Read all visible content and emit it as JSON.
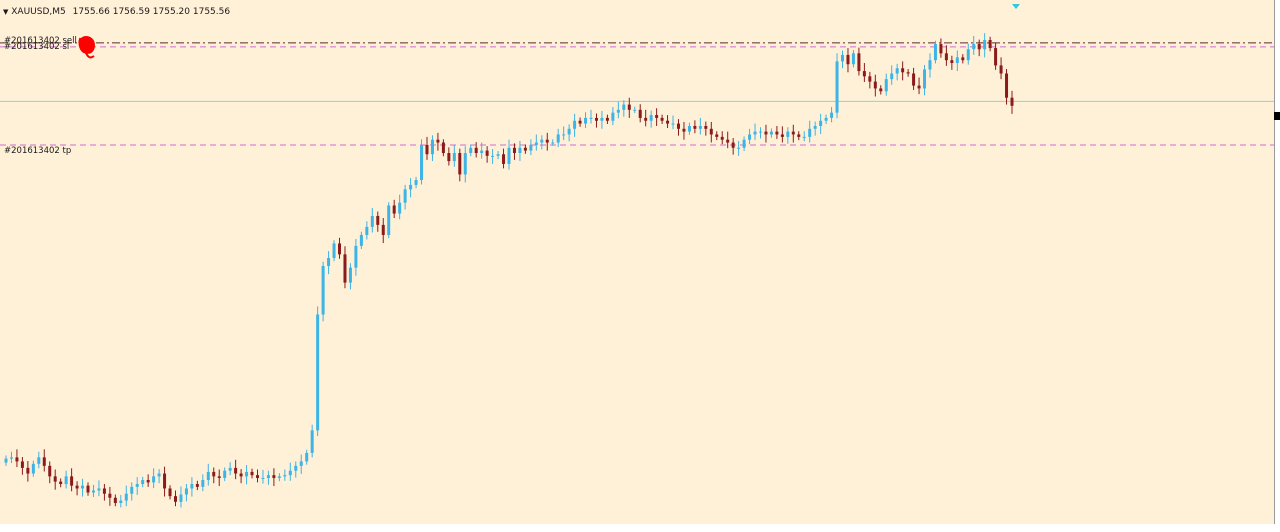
{
  "header": {
    "symbol": "XAUUSD,M5",
    "ohlc": "1755.66 1756.59 1755.20 1755.56"
  },
  "levels": {
    "sell_label": "#201613402 sell",
    "sl_label": "#201613402 sl",
    "tp_label": "#201613402 tp"
  },
  "colors": {
    "background": "#fff0d8",
    "bull": "#3cb4e6",
    "bear": "#8b1a1a",
    "sl_line": "#d46ad4",
    "tp_line": "#d46ad4",
    "entry_line": "#5a2a2a",
    "bid_line": "#7fd8e0",
    "annotation": "#ff0000"
  },
  "x_axis_ticks": [
    "",
    "",
    "",
    "",
    "",
    "",
    "",
    "",
    "",
    "",
    "",
    "",
    "",
    ""
  ],
  "chart_data": {
    "type": "line",
    "symbol": "XAUUSD",
    "timeframe": "M5",
    "last_bar": {
      "open": 1755.66,
      "high": 1756.59,
      "low": 1755.2,
      "close": 1755.56
    },
    "series": [
      {
        "name": "XAUUSD,M5",
        "close_path": [
          0.115,
          0.118,
          0.108,
          0.092,
          0.078,
          0.102,
          0.118,
          0.097,
          0.071,
          0.058,
          0.052,
          0.071,
          0.048,
          0.041,
          0.048,
          0.031,
          0.036,
          0.041,
          0.028,
          0.018,
          0.005,
          0.011,
          0.028,
          0.045,
          0.052,
          0.062,
          0.056,
          0.071,
          0.078,
          0.041,
          0.022,
          0.008,
          0.026,
          0.041,
          0.052,
          0.045,
          0.062,
          0.082,
          0.071,
          0.067,
          0.085,
          0.092,
          0.078,
          0.071,
          0.082,
          0.074,
          0.067,
          0.067,
          0.074,
          0.067,
          0.071,
          0.074,
          0.085,
          0.097,
          0.108,
          0.129,
          0.185,
          0.472,
          0.592,
          0.612,
          0.648,
          0.621,
          0.551,
          0.588,
          0.642,
          0.669,
          0.689,
          0.716,
          0.694,
          0.669,
          0.742,
          0.722,
          0.749,
          0.782,
          0.793,
          0.805,
          0.892,
          0.869,
          0.905,
          0.898,
          0.872,
          0.852,
          0.872,
          0.819,
          0.872,
          0.885,
          0.872,
          0.878,
          0.865,
          0.865,
          0.869,
          0.845,
          0.885,
          0.872,
          0.885,
          0.878,
          0.892,
          0.898,
          0.905,
          0.898,
          0.898,
          0.918,
          0.918,
          0.932,
          0.952,
          0.945,
          0.959,
          0.959,
          0.952,
          0.959,
          0.952,
          0.972,
          0.979,
          0.992,
          0.979,
          0.979,
          0.959,
          0.952,
          0.966,
          0.959,
          0.952,
          0.945,
          0.945,
          0.932,
          0.925,
          0.939,
          0.932,
          0.939,
          0.932,
          0.918,
          0.912,
          0.905,
          0.898,
          0.885,
          0.885,
          0.905,
          0.918,
          0.925,
          0.925,
          0.918,
          0.925,
          0.918,
          0.912,
          0.925,
          0.918,
          0.912,
          0.912,
          0.932,
          0.939,
          0.952,
          0.959,
          0.972,
          1.099,
          1.115,
          1.092,
          1.119,
          1.075,
          1.062,
          1.049,
          1.032,
          1.025,
          1.055,
          1.069,
          1.082,
          1.072,
          1.069,
          1.039,
          1.032,
          1.079,
          1.102,
          1.142,
          1.119,
          1.102,
          1.095,
          1.109,
          1.102,
          1.129,
          1.142,
          1.129,
          1.152,
          1.132,
          1.089,
          1.069,
          1.009,
          0.989
        ]
      }
    ],
    "horizontal_lines": [
      {
        "label": "#201613402 sell",
        "style": "dash-dot",
        "level": 1.145
      },
      {
        "label": "#201613402 sl",
        "style": "dashed",
        "level": 1.135
      },
      {
        "label": "",
        "style": "solid",
        "level": 1.0
      },
      {
        "label": "#201613402 tp",
        "style": "dashed",
        "level": 0.892
      }
    ]
  }
}
